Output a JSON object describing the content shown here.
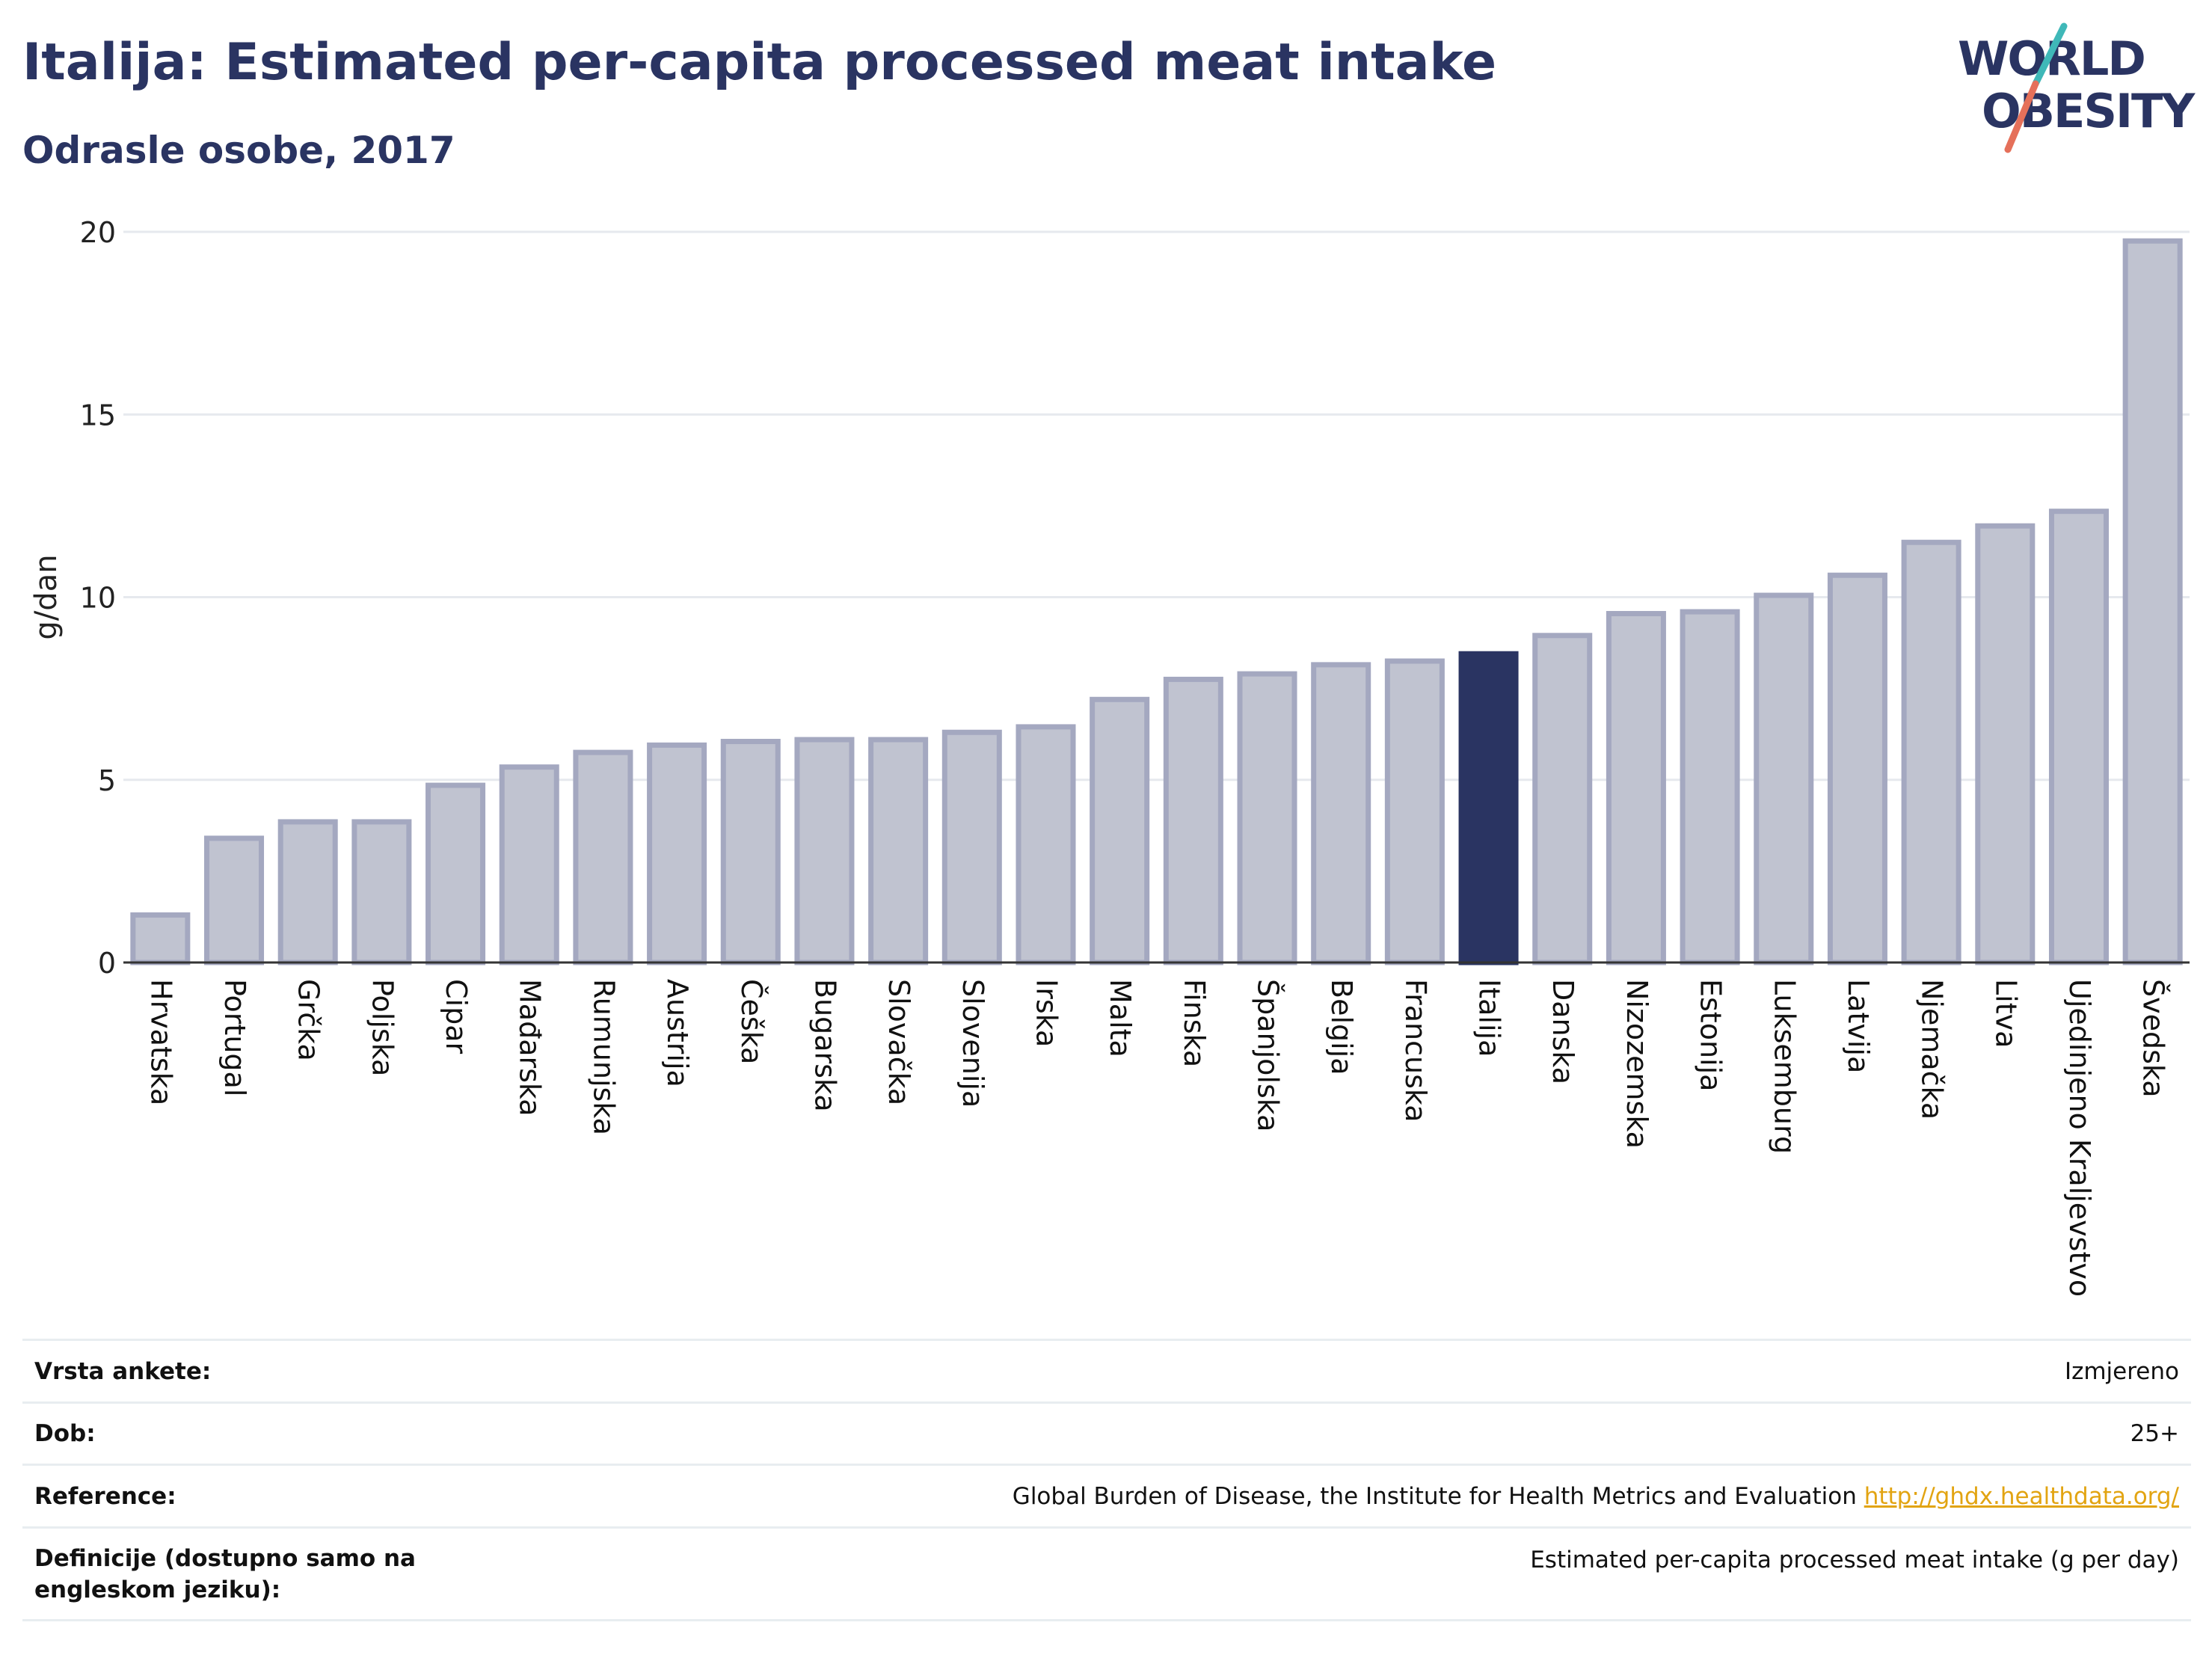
{
  "header": {
    "title": "Italija: Estimated per-capita processed meat intake",
    "subtitle": "Odrasle osobe, 2017"
  },
  "logo": {
    "line1": "WORLD",
    "line2": "OBESITY",
    "icon": "world-obesity-logo"
  },
  "colors": {
    "highlight": "#2a3462",
    "bar_fill": "#c0c3d0",
    "bar_border": "#a4a8c0",
    "grid": "#e6e9ee",
    "link": "#e2a412"
  },
  "chart_data": {
    "type": "bar",
    "ylabel": "g/dan",
    "xlabel": "",
    "ylim": [
      0,
      20
    ],
    "yticks": [
      0,
      5,
      10,
      15,
      20
    ],
    "grid": true,
    "highlight": "Italija",
    "categories": [
      "Hrvatska",
      "Portugal",
      "Grčka",
      "Poljska",
      "Cipar",
      "Mađarska",
      "Rumunjska",
      "Austrija",
      "Češka",
      "Bugarska",
      "Slovačka",
      "Slovenija",
      "Irska",
      "Malta",
      "Finska",
      "Španjolska",
      "Belgija",
      "Francuska",
      "Italija",
      "Danska",
      "Nizozemska",
      "Estonija",
      "Luksemburg",
      "Latvija",
      "Njemačka",
      "Litva",
      "Ujedinjeno Kraljevstvo",
      "Švedska"
    ],
    "values": [
      1.3,
      3.4,
      3.85,
      3.85,
      4.85,
      5.35,
      5.75,
      5.95,
      6.05,
      6.1,
      6.1,
      6.3,
      6.45,
      7.2,
      7.75,
      7.9,
      8.15,
      8.25,
      8.45,
      8.95,
      9.55,
      9.6,
      10.05,
      10.6,
      11.5,
      11.95,
      12.35,
      19.75
    ]
  },
  "info_table": [
    {
      "label": "Vrsta ankete:",
      "value": "Izmjereno"
    },
    {
      "label": "Dob:",
      "value": "25+"
    },
    {
      "label": "Reference:",
      "value": "Global Burden of Disease, the Institute for Health Metrics and Evaluation",
      "link": "http://ghdx.healthdata.org/"
    },
    {
      "label": "Definicije (dostupno samo na engleskom jeziku):",
      "value": "Estimated per-capita processed meat intake (g per day)"
    }
  ]
}
